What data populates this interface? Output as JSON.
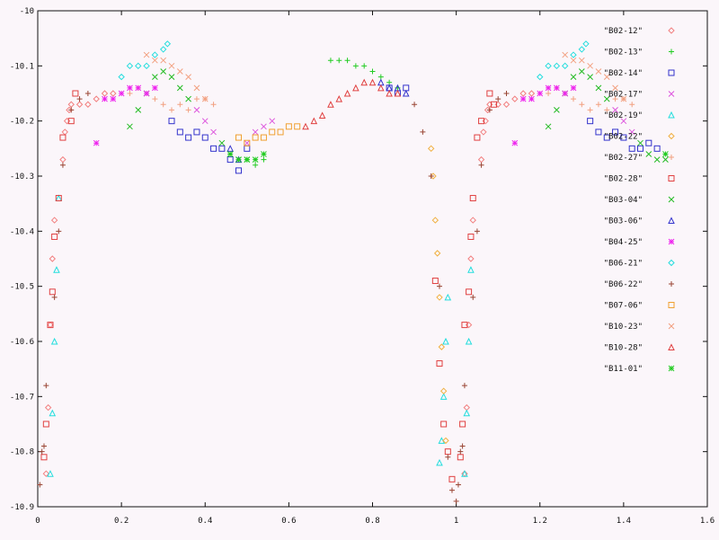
{
  "chart_data": {
    "type": "scatter",
    "title": "",
    "xlabel": "",
    "ylabel": "",
    "xlim": [
      0,
      1.6
    ],
    "ylim": [
      -10.9,
      -10
    ],
    "grid": false,
    "legend_position": "right",
    "x_ticks": [
      "0",
      "0.2",
      "0.4",
      "0.6",
      "0.8",
      "1",
      "1.2",
      "1.4",
      "1.6"
    ],
    "y_ticks": [
      "-10",
      "-10.1",
      "-10.2",
      "-10.3",
      "-10.4",
      "-10.5",
      "-10.6",
      "-10.7",
      "-10.8",
      "-10.9"
    ],
    "series": [
      {
        "name": "\"B02-12\"",
        "color": "#f28080",
        "marker": "diamond",
        "x": [
          0.06,
          0.065,
          0.07,
          0.075,
          0.08,
          0.1,
          0.12,
          0.14,
          0.16,
          0.18,
          1.06,
          1.065,
          1.07,
          1.075,
          1.08,
          1.1,
          1.12,
          1.14,
          1.16,
          1.18,
          0.02,
          0.025,
          0.03,
          0.035,
          0.04,
          1.02,
          1.025,
          1.03,
          1.035,
          1.04
        ],
        "y": [
          -10.27,
          -10.22,
          -10.2,
          -10.18,
          -10.17,
          -10.17,
          -10.17,
          -10.16,
          -10.15,
          -10.15,
          -10.27,
          -10.22,
          -10.2,
          -10.18,
          -10.17,
          -10.17,
          -10.17,
          -10.16,
          -10.15,
          -10.15,
          -10.84,
          -10.72,
          -10.57,
          -10.45,
          -10.38,
          -10.84,
          -10.72,
          -10.57,
          -10.45,
          -10.38
        ]
      },
      {
        "name": "\"B02-13\"",
        "color": "#22cc22",
        "marker": "plus",
        "x": [
          0.7,
          0.72,
          0.74,
          0.76,
          0.78,
          0.8,
          0.82,
          0.84,
          0.86,
          0.5,
          0.52,
          0.54
        ],
        "y": [
          -10.09,
          -10.09,
          -10.09,
          -10.1,
          -10.1,
          -10.11,
          -10.12,
          -10.13,
          -10.14,
          -10.27,
          -10.28,
          -10.27
        ]
      },
      {
        "name": "\"B02-14\"",
        "color": "#3333cc",
        "marker": "square",
        "x": [
          0.32,
          0.34,
          0.36,
          0.38,
          0.4,
          0.42,
          0.44,
          0.46,
          0.48,
          0.5,
          0.84,
          0.86,
          0.88,
          1.32,
          1.34,
          1.36,
          1.38,
          1.4,
          1.42,
          1.44,
          1.46,
          1.48
        ],
        "y": [
          -10.2,
          -10.22,
          -10.23,
          -10.22,
          -10.23,
          -10.25,
          -10.25,
          -10.27,
          -10.29,
          -10.25,
          -10.14,
          -10.15,
          -10.14,
          -10.2,
          -10.22,
          -10.23,
          -10.22,
          -10.23,
          -10.25,
          -10.25,
          -10.24,
          -10.25
        ]
      },
      {
        "name": "\"B02-17\"",
        "color": "#dd55dd",
        "marker": "x",
        "x": [
          0.38,
          0.4,
          0.42,
          0.5,
          0.52,
          0.54,
          0.56,
          1.38,
          1.4,
          1.42
        ],
        "y": [
          -10.18,
          -10.2,
          -10.22,
          -10.24,
          -10.22,
          -10.21,
          -10.2,
          -10.18,
          -10.2,
          -10.22
        ]
      },
      {
        "name": "\"B02-19\"",
        "color": "#22dddd",
        "marker": "triangle",
        "x": [
          0.03,
          0.035,
          0.04,
          0.045,
          0.05,
          0.96,
          0.965,
          0.97,
          0.975,
          0.98,
          1.02,
          1.025,
          1.03,
          1.035
        ],
        "y": [
          -10.84,
          -10.73,
          -10.6,
          -10.47,
          -10.34,
          -10.82,
          -10.78,
          -10.7,
          -10.6,
          -10.52,
          -10.84,
          -10.73,
          -10.6,
          -10.47
        ]
      },
      {
        "name": "\"B02-22\"",
        "color": "#f0b040",
        "marker": "diamond",
        "x": [
          0.94,
          0.945,
          0.95,
          0.955,
          0.96,
          0.965,
          0.97,
          0.975
        ],
        "y": [
          -10.25,
          -10.3,
          -10.38,
          -10.44,
          -10.52,
          -10.61,
          -10.69,
          -10.78
        ]
      },
      {
        "name": "\"B02-27\"",
        "color": "#f2a080",
        "marker": "plus",
        "x": [
          0.22,
          0.24,
          0.26,
          0.28,
          0.3,
          0.32,
          0.34,
          0.36,
          0.38,
          0.4,
          0.42,
          1.22,
          1.24,
          1.26,
          1.28,
          1.3,
          1.32,
          1.34,
          1.36,
          1.38,
          1.4,
          1.42
        ],
        "y": [
          -10.15,
          -10.14,
          -10.15,
          -10.16,
          -10.17,
          -10.18,
          -10.17,
          -10.18,
          -10.16,
          -10.16,
          -10.17,
          -10.15,
          -10.14,
          -10.15,
          -10.16,
          -10.17,
          -10.18,
          -10.17,
          -10.18,
          -10.16,
          -10.16,
          -10.17
        ]
      },
      {
        "name": "\"B02-28\"",
        "color": "#e04040",
        "marker": "square",
        "x": [
          0.015,
          0.02,
          0.03,
          0.035,
          0.04,
          0.05,
          0.06,
          0.08,
          0.09,
          0.95,
          0.96,
          0.97,
          0.98,
          0.99,
          1.01,
          1.015,
          1.02,
          1.03,
          1.035,
          1.04,
          1.05,
          1.06,
          1.08,
          1.09
        ],
        "y": [
          -10.81,
          -10.75,
          -10.57,
          -10.51,
          -10.41,
          -10.34,
          -10.23,
          -10.2,
          -10.15,
          -10.49,
          -10.64,
          -10.75,
          -10.8,
          -10.85,
          -10.81,
          -10.75,
          -10.57,
          -10.51,
          -10.41,
          -10.34,
          -10.23,
          -10.2,
          -10.15,
          -10.17
        ]
      },
      {
        "name": "\"B03-04\"",
        "color": "#22bb22",
        "marker": "x",
        "x": [
          0.22,
          0.24,
          0.26,
          0.28,
          0.3,
          0.32,
          0.34,
          0.36,
          0.44,
          0.46,
          0.48,
          0.5,
          1.22,
          1.24,
          1.26,
          1.28,
          1.3,
          1.32,
          1.34,
          1.36,
          1.44,
          1.46,
          1.48,
          1.5
        ],
        "y": [
          -10.21,
          -10.18,
          -10.15,
          -10.12,
          -10.11,
          -10.12,
          -10.14,
          -10.16,
          -10.24,
          -10.26,
          -10.27,
          -10.27,
          -10.21,
          -10.18,
          -10.15,
          -10.12,
          -10.11,
          -10.12,
          -10.14,
          -10.16,
          -10.24,
          -10.26,
          -10.27,
          -10.27
        ]
      },
      {
        "name": "\"B03-06\"",
        "color": "#3333cc",
        "marker": "triangle",
        "x": [
          0.46,
          0.48,
          0.82,
          0.84,
          0.86,
          0.88
        ],
        "y": [
          -10.25,
          -10.27,
          -10.13,
          -10.14,
          -10.14,
          -10.15
        ]
      },
      {
        "name": "\"B04-25\"",
        "color": "#ee22ee",
        "marker": "asterisk",
        "x": [
          0.14,
          0.16,
          0.18,
          0.2,
          0.22,
          0.24,
          0.26,
          0.28,
          1.14,
          1.16,
          1.18,
          1.2,
          1.22,
          1.24,
          1.26,
          1.28
        ],
        "y": [
          -10.24,
          -10.16,
          -10.16,
          -10.15,
          -10.14,
          -10.14,
          -10.15,
          -10.14,
          -10.24,
          -10.16,
          -10.16,
          -10.15,
          -10.14,
          -10.14,
          -10.15,
          -10.14
        ]
      },
      {
        "name": "\"B06-21\"",
        "color": "#22dddd",
        "marker": "diamond",
        "x": [
          0.2,
          0.22,
          0.24,
          0.26,
          0.28,
          0.3,
          0.31,
          1.2,
          1.22,
          1.24,
          1.26,
          1.28,
          1.3,
          1.31
        ],
        "y": [
          -10.12,
          -10.1,
          -10.1,
          -10.1,
          -10.08,
          -10.07,
          -10.06,
          -10.12,
          -10.1,
          -10.1,
          -10.1,
          -10.08,
          -10.07,
          -10.06
        ]
      },
      {
        "name": "\"B06-22\"",
        "color": "#994433",
        "marker": "plus",
        "x": [
          0.005,
          0.01,
          0.015,
          0.02,
          0.04,
          0.05,
          0.06,
          0.08,
          0.1,
          0.12,
          0.9,
          0.92,
          0.94,
          0.96,
          0.98,
          0.99,
          1.0,
          1.005,
          1.01,
          1.015,
          1.02,
          1.04,
          1.05,
          1.06,
          1.08,
          1.1,
          1.12
        ],
        "y": [
          -10.86,
          -10.8,
          -10.79,
          -10.68,
          -10.52,
          -10.4,
          -10.28,
          -10.18,
          -10.16,
          -10.15,
          -10.17,
          -10.22,
          -10.3,
          -10.5,
          -10.81,
          -10.87,
          -10.89,
          -10.86,
          -10.8,
          -10.79,
          -10.68,
          -10.52,
          -10.4,
          -10.28,
          -10.18,
          -10.16,
          -10.15
        ]
      },
      {
        "name": "\"B07-06\"",
        "color": "#f0a030",
        "marker": "square",
        "x": [
          0.48,
          0.5,
          0.52,
          0.54,
          0.56,
          0.58,
          0.6,
          0.62
        ],
        "y": [
          -10.23,
          -10.24,
          -10.23,
          -10.23,
          -10.22,
          -10.22,
          -10.21,
          -10.21
        ]
      },
      {
        "name": "\"B10-23\"",
        "color": "#f2a080",
        "marker": "x",
        "x": [
          0.26,
          0.28,
          0.3,
          0.32,
          0.34,
          0.36,
          0.38,
          0.4,
          1.26,
          1.28,
          1.3,
          1.32,
          1.34,
          1.36,
          1.38,
          1.4
        ],
        "y": [
          -10.08,
          -10.09,
          -10.09,
          -10.1,
          -10.11,
          -10.12,
          -10.14,
          -10.16,
          -10.08,
          -10.09,
          -10.09,
          -10.1,
          -10.11,
          -10.12,
          -10.14,
          -10.16
        ]
      },
      {
        "name": "\"B10-28\"",
        "color": "#e04040",
        "marker": "triangle",
        "x": [
          0.64,
          0.66,
          0.68,
          0.7,
          0.72,
          0.74,
          0.76,
          0.78,
          0.8,
          0.82,
          0.84,
          0.86
        ],
        "y": [
          -10.21,
          -10.2,
          -10.19,
          -10.17,
          -10.16,
          -10.15,
          -10.14,
          -10.13,
          -10.13,
          -10.14,
          -10.15,
          -10.15
        ]
      },
      {
        "name": "\"B11-01\"",
        "color": "#22cc22",
        "marker": "asterisk",
        "x": [
          0.46,
          0.48,
          0.5,
          0.52,
          0.54,
          1.5
        ],
        "y": [
          -10.26,
          -10.27,
          -10.27,
          -10.27,
          -10.26,
          -10.26
        ]
      }
    ]
  }
}
